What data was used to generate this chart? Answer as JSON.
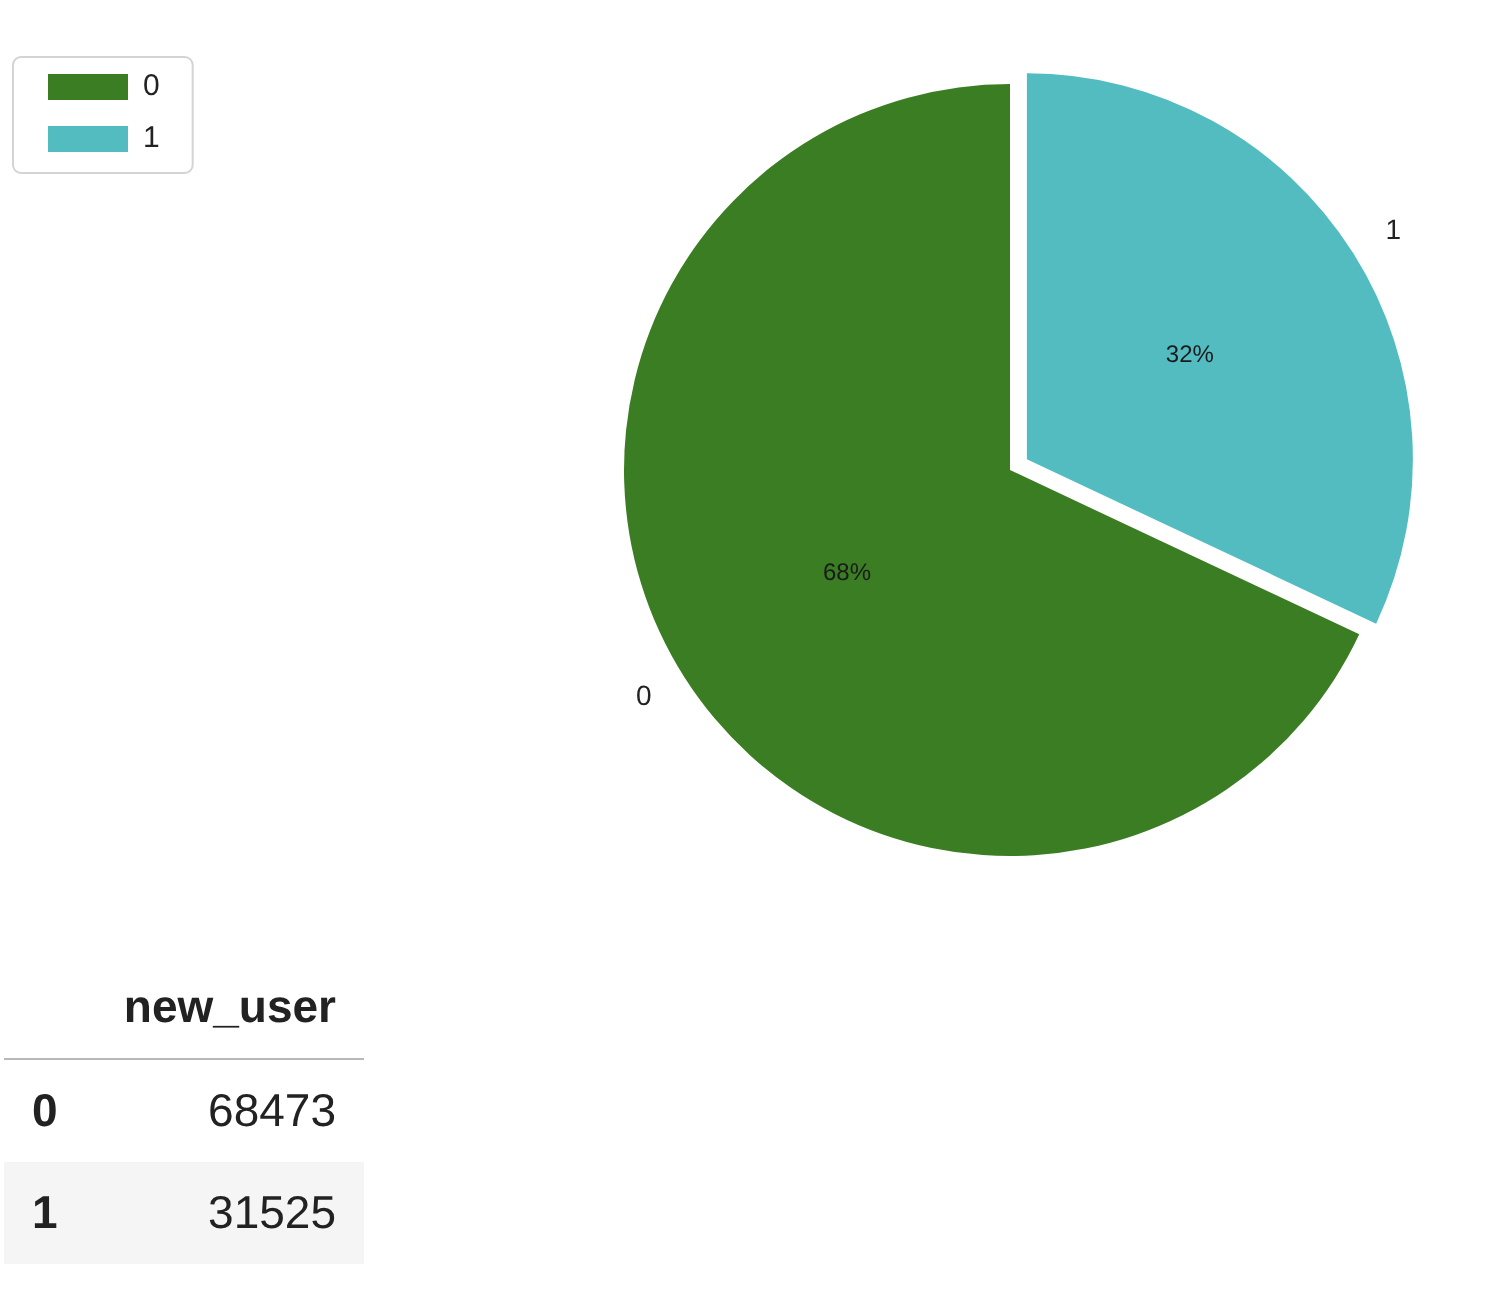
{
  "chart_data": [
    {
      "type": "pie",
      "categories": [
        "0",
        "1"
      ],
      "values": [
        68,
        32
      ],
      "colors": [
        "#3a7d22",
        "#52bcc0"
      ],
      "value_labels": [
        "68%",
        "32%"
      ],
      "legend": "top left"
    },
    {
      "type": "other",
      "title": "new_user",
      "categories": [
        "0",
        "1"
      ],
      "values": [
        68473,
        31525
      ],
      "data_labels": true
    }
  ]
}
